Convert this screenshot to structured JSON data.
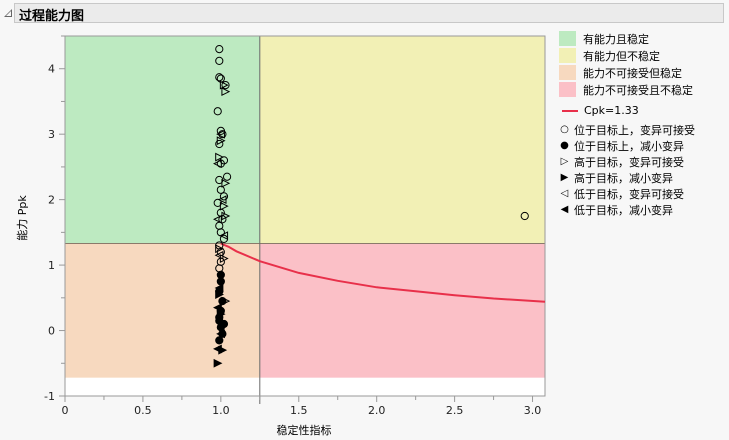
{
  "header": {
    "title": "过程能力图"
  },
  "chart_data": {
    "type": "scatter",
    "title": "过程能力图",
    "xlabel": "稳定性指标",
    "ylabel": "能力 Ppk",
    "xlim": [
      0,
      3.08
    ],
    "ylim": [
      -1,
      4.5
    ],
    "x_ticks": [
      "0",
      "0.5",
      "1.0",
      "1.5",
      "2.0",
      "2.5",
      "3.0"
    ],
    "y_ticks": [
      "-1",
      "0",
      "1",
      "2",
      "3",
      "4"
    ],
    "thresholds": {
      "stability_index": 1.25,
      "ppk": 1.33
    },
    "regions": [
      {
        "label": "有能力且稳定",
        "color": "#bdeac1"
      },
      {
        "label": "有能力但不稳定",
        "color": "#f2f0b5"
      },
      {
        "label": "能力不可接受但稳定",
        "color": "#f7d9bf"
      },
      {
        "label": "能力不可接受且不稳定",
        "color": "#fbc0c7"
      }
    ],
    "curve": {
      "label": "Cpk=1.33",
      "color": "#e8304a",
      "points": [
        [
          1.0,
          1.33
        ],
        [
          1.05,
          1.28
        ],
        [
          1.1,
          1.21
        ],
        [
          1.25,
          1.06
        ],
        [
          1.5,
          0.88
        ],
        [
          1.75,
          0.76
        ],
        [
          2.0,
          0.66
        ],
        [
          2.25,
          0.6
        ],
        [
          2.5,
          0.54
        ],
        [
          2.75,
          0.49
        ],
        [
          3.08,
          0.44
        ]
      ]
    },
    "marker_legend": [
      {
        "symbol": "○",
        "label": "位于目标上，变异可接受"
      },
      {
        "symbol": "●",
        "label": "位于目标上，减小变异"
      },
      {
        "symbol": "▷",
        "label": "高于目标，变异可接受"
      },
      {
        "symbol": "▶",
        "label": "高于目标，减小变异"
      },
      {
        "symbol": "◁",
        "label": "低于目标，变异可接受"
      },
      {
        "symbol": "◀",
        "label": "低于目标，减小变异"
      }
    ],
    "series": [
      {
        "name": "位于目标上，变异可接受",
        "marker": "open-circle",
        "points": [
          [
            0.99,
            4.3
          ],
          [
            0.99,
            4.12
          ],
          [
            0.99,
            3.87
          ],
          [
            1.0,
            3.85
          ],
          [
            1.03,
            3.75
          ],
          [
            0.98,
            3.35
          ],
          [
            1.0,
            3.05
          ],
          [
            1.01,
            3.0
          ],
          [
            0.99,
            2.85
          ],
          [
            1.02,
            2.6
          ],
          [
            1.0,
            2.55
          ],
          [
            1.04,
            2.35
          ],
          [
            0.99,
            2.3
          ],
          [
            1.0,
            2.15
          ],
          [
            1.02,
            2.05
          ],
          [
            0.98,
            1.95
          ],
          [
            1.0,
            1.8
          ],
          [
            1.01,
            1.7
          ],
          [
            0.99,
            1.6
          ],
          [
            1.0,
            1.5
          ],
          [
            1.02,
            1.4
          ],
          [
            0.99,
            1.3
          ],
          [
            1.0,
            1.2
          ],
          [
            1.0,
            1.05
          ],
          [
            0.99,
            0.95
          ],
          [
            2.95,
            1.75
          ]
        ]
      },
      {
        "name": "位于目标上，减小变异",
        "marker": "filled-circle",
        "points": [
          [
            1.0,
            0.75
          ],
          [
            0.99,
            0.6
          ],
          [
            1.01,
            0.45
          ],
          [
            1.0,
            0.3
          ],
          [
            0.99,
            0.15
          ],
          [
            1.0,
            0.05
          ],
          [
            1.01,
            -0.05
          ],
          [
            0.99,
            -0.15
          ],
          [
            1.0,
            0.85
          ],
          [
            1.02,
            0.1
          ],
          [
            0.99,
            0.2
          ]
        ]
      },
      {
        "name": "高于目标，变异可接受",
        "marker": "open-triangle-right",
        "points": [
          [
            1.03,
            3.65
          ],
          [
            1.02,
            3.75
          ],
          [
            1.0,
            2.9
          ],
          [
            0.99,
            2.65
          ],
          [
            1.03,
            2.25
          ],
          [
            1.02,
            1.9
          ],
          [
            1.03,
            1.75
          ],
          [
            0.99,
            1.25
          ],
          [
            1.02,
            1.1
          ],
          [
            1.03,
            0.45
          ]
        ]
      },
      {
        "name": "高于目标，减小变异",
        "marker": "filled-triangle-right",
        "points": [
          [
            0.99,
            0.55
          ],
          [
            1.0,
            0.25
          ],
          [
            1.01,
            -0.3
          ],
          [
            0.98,
            -0.5
          ]
        ]
      },
      {
        "name": "低于目标，变异可接受",
        "marker": "open-triangle-left",
        "points": [
          [
            1.0,
            3.0
          ],
          [
            0.98,
            2.55
          ],
          [
            1.01,
            2.0
          ],
          [
            0.98,
            1.7
          ],
          [
            1.02,
            1.45
          ],
          [
            0.99,
            1.15
          ]
        ]
      },
      {
        "name": "低于目标，减小变异",
        "marker": "filled-triangle-left",
        "points": [
          [
            0.99,
            0.65
          ],
          [
            0.98,
            0.35
          ],
          [
            1.0,
            -0.05
          ],
          [
            0.98,
            -0.28
          ]
        ]
      }
    ]
  }
}
